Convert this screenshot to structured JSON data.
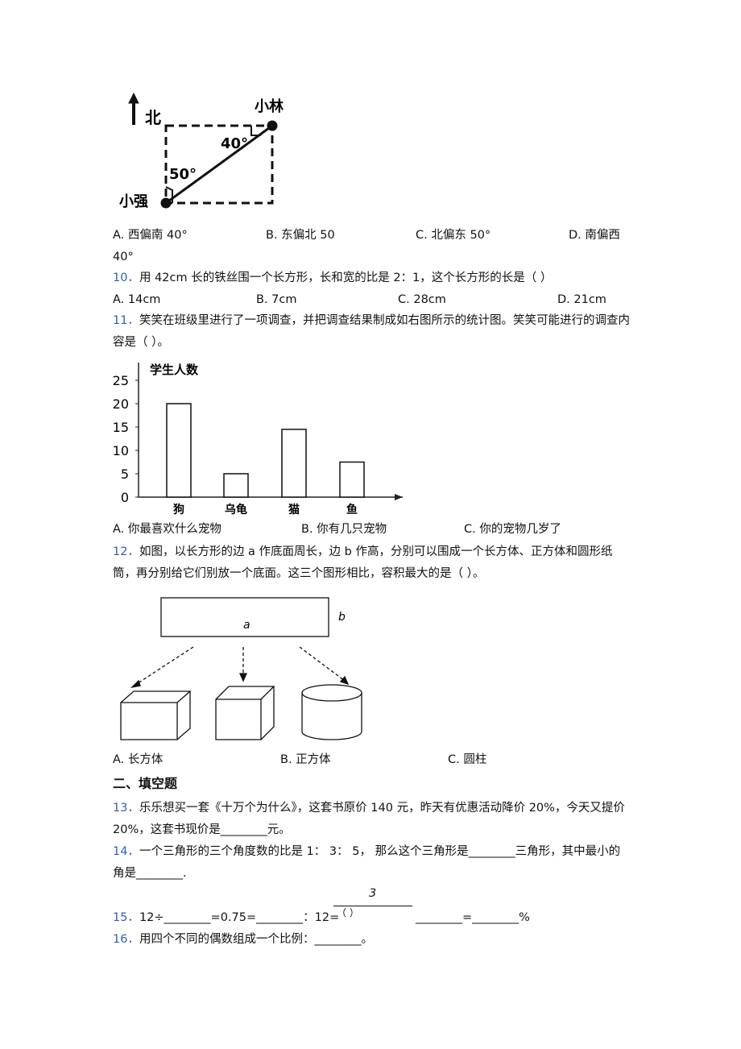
{
  "q9": {
    "figure": {
      "north": "北",
      "point_a": "小林",
      "point_b": "小强",
      "angle_a": "40°",
      "angle_b": "50°"
    },
    "options": [
      "A. 西偏南 40°",
      "B. 东偏北 50",
      "C. 北偏东 50°",
      "D. 南偏西"
    ],
    "option_d_continued": "40°"
  },
  "q10": {
    "number": "10．",
    "text": "用 42cm 长的铁丝围一个长方形，长和宽的比是 2：1，这个长方形的长是（    ）",
    "options": [
      "A. 14cm",
      "B. 7cm",
      "C. 28cm",
      "D. 21cm"
    ]
  },
  "q11": {
    "number": "11．",
    "text": "笑笑在班级里进行了一项调查，并把调查结果制成如右图所示的统计图。笑笑可能进行的调查内容是（     ）。",
    "chart": {
      "type": "bar",
      "y_label": "学生人数",
      "ylim": [
        0,
        25
      ],
      "yticks": [
        0,
        5,
        10,
        15,
        20,
        25
      ],
      "categories": [
        "狗",
        "乌龟",
        "猫",
        "鱼"
      ],
      "values": [
        20,
        5,
        14.5,
        7.5
      ]
    },
    "options": [
      "A. 你最喜欢什么宠物",
      "B. 你有几只宠物",
      "C. 你的宠物几岁了"
    ]
  },
  "q12": {
    "number": "12．",
    "text": "如图，以长方形的边 a 作底面周长，边 b 作高，分别可以围成一个长方体、正方体和圆形纸筒，再分别给它们别放一个底面。这三个图形相比，容积最大的是（   ）。",
    "figure": {
      "side_a": "a",
      "side_b": "b"
    },
    "options": [
      "A. 长方体",
      "B. 正方体",
      "C. 圆柱"
    ]
  },
  "section": "二、填空题",
  "q13": {
    "number": "13．",
    "text": "乐乐想买一套《十万个为什么》，这套书原价 140 元，昨天有优惠活动降价 20%，今天又提价 20%，这套书现价是________元。"
  },
  "q14": {
    "number": "14．",
    "text": "一个三角形的三个角度数的比是 1： 3： 5， 那么这个三角形是________三角形，其中最小的角是________."
  },
  "q15": {
    "number": "15．",
    "text_before": "12÷________=0.75=________：12=",
    "numerator": "3",
    "denominator": "（          ）",
    "text_after": "________=________%"
  },
  "q16": {
    "number": "16．",
    "text": "用四个不同的偶数组成一个比例：________。"
  }
}
